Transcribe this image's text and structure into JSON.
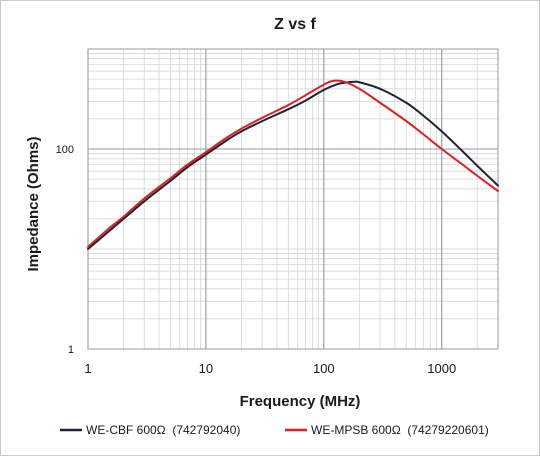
{
  "chart_data": {
    "type": "line",
    "title": "Z vs f",
    "xlabel": "Frequency (MHz)",
    "ylabel": "Impedance (Ohms)",
    "x_scale": "log",
    "y_scale": "log",
    "xlim": [
      1,
      3000
    ],
    "ylim": [
      1,
      1000
    ],
    "x_ticks": [
      1,
      10,
      100,
      1000
    ],
    "x_tick_labels": [
      "1",
      "10",
      "100",
      "1000"
    ],
    "y_ticks": [
      1,
      100
    ],
    "y_tick_labels": [
      "1",
      "100"
    ],
    "grid": true,
    "legend_position": "bottom",
    "series": [
      {
        "name": "WE-CBF 600Ω  (742792040)",
        "color": "#1b2433",
        "x": [
          1,
          1.5,
          2,
          3,
          5,
          7,
          10,
          15,
          20,
          30,
          50,
          70,
          100,
          130,
          150,
          180,
          200,
          300,
          500,
          700,
          1000,
          1500,
          2000,
          3000
        ],
        "y": [
          10,
          15,
          20,
          30,
          48,
          66,
          88,
          122,
          150,
          190,
          250,
          305,
          390,
          445,
          460,
          470,
          465,
          400,
          290,
          215,
          150,
          95,
          68,
          43
        ]
      },
      {
        "name": "WE-MPSB 600Ω  (74279220601)",
        "color": "#e02020",
        "x": [
          1,
          1.5,
          2,
          3,
          5,
          7,
          10,
          15,
          20,
          30,
          50,
          70,
          100,
          120,
          150,
          200,
          300,
          500,
          700,
          1000,
          1500,
          2000,
          3000
        ],
        "y": [
          10.5,
          16,
          21,
          32,
          51,
          70,
          93,
          130,
          160,
          205,
          275,
          345,
          440,
          480,
          470,
          400,
          290,
          190,
          140,
          100,
          70,
          54,
          38
        ]
      }
    ]
  }
}
